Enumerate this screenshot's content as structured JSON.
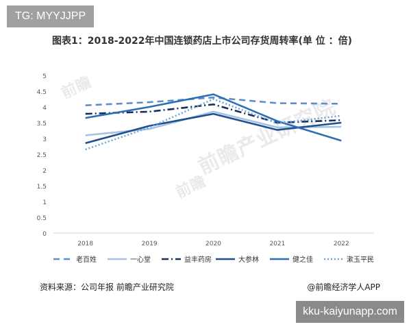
{
  "header": {
    "tag": "TG: MYYJJPP"
  },
  "footer": {
    "source": "资料来源：公司年报 前瞻产业研究院",
    "brand": "@前瞻经济学人APP",
    "site": "kku-kaiyunapp.com"
  },
  "chart_data": {
    "type": "line",
    "title": "图表1：2018-2022年中国连锁药店上市公司存货周转率(单 位 ：倍)",
    "xlabel": "",
    "ylabel": "",
    "categories": [
      "2018",
      "2019",
      "2020",
      "2021",
      "2022"
    ],
    "ylim": [
      0,
      5
    ],
    "yticks": [
      "0",
      "0.5",
      "1",
      "1.5",
      "2",
      "2.5",
      "3",
      "3.5",
      "4",
      "4.5",
      "5"
    ],
    "grid": false,
    "legend_position": "bottom",
    "series": [
      {
        "name": "老百姓",
        "values": [
          4.05,
          4.15,
          4.3,
          4.12,
          4.1
        ],
        "color": "#5b8fc9",
        "dash": "long-dash"
      },
      {
        "name": "一心堂",
        "values": [
          3.1,
          3.3,
          3.85,
          3.35,
          3.37
        ],
        "color": "#a6c1e4",
        "dash": "solid"
      },
      {
        "name": "益丰药房",
        "values": [
          3.78,
          3.85,
          4.08,
          3.5,
          3.58
        ],
        "color": "#15325c",
        "dash": "dash-dot"
      },
      {
        "name": "大参林",
        "values": [
          2.85,
          3.4,
          3.78,
          3.27,
          3.5
        ],
        "color": "#1e4f8f",
        "dash": "solid"
      },
      {
        "name": "健之佳",
        "values": [
          3.65,
          4.0,
          4.4,
          3.55,
          2.93
        ],
        "color": "#2e6db3",
        "dash": "solid"
      },
      {
        "name": "漱玉平民",
        "values": [
          2.65,
          3.35,
          4.25,
          3.48,
          3.72
        ],
        "color": "#6fa3d8",
        "dash": "dotted"
      }
    ]
  }
}
